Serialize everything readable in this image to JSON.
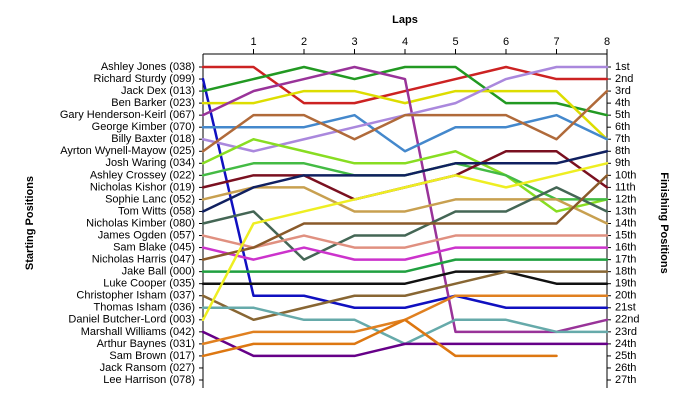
{
  "chart_data": {
    "type": "line",
    "title": "Laps",
    "y_label_left": "Starting Positions",
    "y_label_right": "Finishing Positions",
    "x": [
      0,
      1,
      2,
      3,
      4,
      5,
      6,
      7,
      8
    ],
    "xlim": [
      0,
      8
    ],
    "xticks": [
      1,
      2,
      3,
      4,
      5,
      6,
      7,
      8
    ],
    "ylim": [
      1,
      27
    ],
    "y_inverted": true,
    "yticks": [
      1,
      2,
      3,
      4,
      5,
      6,
      7,
      8,
      9,
      10,
      11,
      12,
      13,
      14,
      15,
      16,
      17,
      18,
      19,
      20,
      21,
      22,
      23,
      24,
      25,
      26,
      27
    ],
    "finishing_labels": [
      "1st",
      "2nd",
      "3rd",
      "4th",
      "5th",
      "6th",
      "7th",
      "8th",
      "9th",
      "10th",
      "11th",
      "12th",
      "13th",
      "14th",
      "15th",
      "16th",
      "17th",
      "18th",
      "19th",
      "20th",
      "21st",
      "22nd",
      "23rd",
      "24th",
      "25th",
      "26th",
      "27th"
    ],
    "series": [
      {
        "name": "Ashley Jones (038)",
        "color": "#cc2222",
        "values": [
          1,
          1,
          4,
          4,
          3,
          2,
          1,
          2,
          2
        ]
      },
      {
        "name": "Richard Sturdy (099)",
        "color": "#1010c0",
        "values": [
          2,
          20,
          20,
          21,
          21,
          20,
          21,
          21,
          21
        ]
      },
      {
        "name": "Jack Dex (013)",
        "color": "#229922",
        "values": [
          3,
          2,
          1,
          2,
          1,
          1,
          4,
          4,
          5
        ]
      },
      {
        "name": "Ben Barker (023)",
        "color": "#dddd00",
        "values": [
          4,
          4,
          3,
          3,
          4,
          3,
          3,
          3,
          7
        ]
      },
      {
        "name": "Gary Henderson-Keirl (067)",
        "color": "#993399",
        "values": [
          5,
          3,
          2,
          1,
          2,
          23,
          23,
          23,
          22
        ]
      },
      {
        "name": "George Kimber (070)",
        "color": "#4488cc",
        "values": [
          6,
          6,
          6,
          5,
          8,
          6,
          6,
          5,
          7
        ]
      },
      {
        "name": "Billy Baxter (018)",
        "color": "#aa88dd",
        "values": [
          7,
          8,
          7,
          6,
          5,
          4,
          2,
          1,
          1
        ]
      },
      {
        "name": "Ayrton Wynell-Mayow (025)",
        "color": "#b06a3a",
        "values": [
          8,
          5,
          5,
          7,
          5,
          5,
          5,
          7,
          3
        ]
      },
      {
        "name": "Josh Waring (034)",
        "color": "#88dd22",
        "values": [
          9,
          7,
          8,
          9,
          9,
          8,
          10,
          13,
          12
        ]
      },
      {
        "name": "Ashley Crossey (022)",
        "color": "#44bb44",
        "values": [
          10,
          9,
          9,
          10,
          10,
          9,
          10,
          12,
          12
        ]
      },
      {
        "name": "Nicholas Kishor (019)",
        "color": "#7a1020",
        "values": [
          11,
          10,
          10,
          12,
          11,
          10,
          8,
          8,
          11
        ]
      },
      {
        "name": "Sophie Lanc (052)",
        "color": "#c8a050",
        "values": [
          12,
          11,
          11,
          13,
          13,
          12,
          12,
          12,
          14
        ]
      },
      {
        "name": "Tom Witts (058)",
        "color": "#102060",
        "values": [
          13,
          11,
          10,
          10,
          10,
          9,
          9,
          9,
          8
        ]
      },
      {
        "name": "Nicholas Kimber (080)",
        "color": "#446655",
        "values": [
          14,
          13,
          17,
          15,
          15,
          13,
          13,
          11,
          13
        ]
      },
      {
        "name": "James Ogden (057)",
        "color": "#e09080",
        "values": [
          15,
          16,
          15,
          16,
          16,
          15,
          15,
          15,
          15
        ]
      },
      {
        "name": "Sam Blake (045)",
        "color": "#cc33cc",
        "values": [
          16,
          17,
          16,
          17,
          17,
          16,
          16,
          16,
          16
        ]
      },
      {
        "name": "Nicholas Harris (047)",
        "color": "#8a5a2a",
        "values": [
          17,
          16,
          14,
          14,
          14,
          14,
          14,
          14,
          10
        ]
      },
      {
        "name": "Jake Ball (000)",
        "color": "#20a040",
        "values": [
          18,
          18,
          18,
          18,
          18,
          17,
          17,
          17,
          17
        ]
      },
      {
        "name": "Luke Cooper (035)",
        "color": "#111111",
        "values": [
          19,
          19,
          19,
          19,
          19,
          18,
          18,
          19,
          19
        ]
      },
      {
        "name": "Christopher Isham (037)",
        "color": "#886633",
        "values": [
          20,
          22,
          21,
          20,
          20,
          19,
          18,
          18,
          18
        ]
      },
      {
        "name": "Thomas Isham (036)",
        "color": "#66aaaa",
        "values": [
          21,
          21,
          22,
          22,
          24,
          22,
          22,
          23,
          23
        ]
      },
      {
        "name": "Daniel Butcher-Lord (003)",
        "color": "#eeee22",
        "values": [
          22,
          14,
          13,
          12,
          11,
          10,
          11,
          10,
          9
        ]
      },
      {
        "name": "Marshall Williams (042)",
        "color": "#660088",
        "values": [
          23,
          25,
          25,
          25,
          24,
          24,
          24,
          24,
          24
        ]
      },
      {
        "name": "Arthur Baynes (031)",
        "color": "#e08020",
        "values": [
          24,
          23,
          23,
          23,
          22,
          20,
          20,
          20,
          20
        ]
      },
      {
        "name": "Sam Brown (017)",
        "color": "#dd7711",
        "values": [
          25,
          24,
          24,
          24,
          22,
          25,
          25,
          25,
          null
        ]
      },
      {
        "name": "Jack Ransom (027)",
        "color": "#999999",
        "values": [
          26,
          null,
          null,
          null,
          null,
          null,
          null,
          null,
          null
        ]
      },
      {
        "name": "Lee Harrison (078)",
        "color": "#999999",
        "values": [
          27,
          null,
          null,
          null,
          null,
          null,
          null,
          null,
          null
        ]
      }
    ]
  }
}
